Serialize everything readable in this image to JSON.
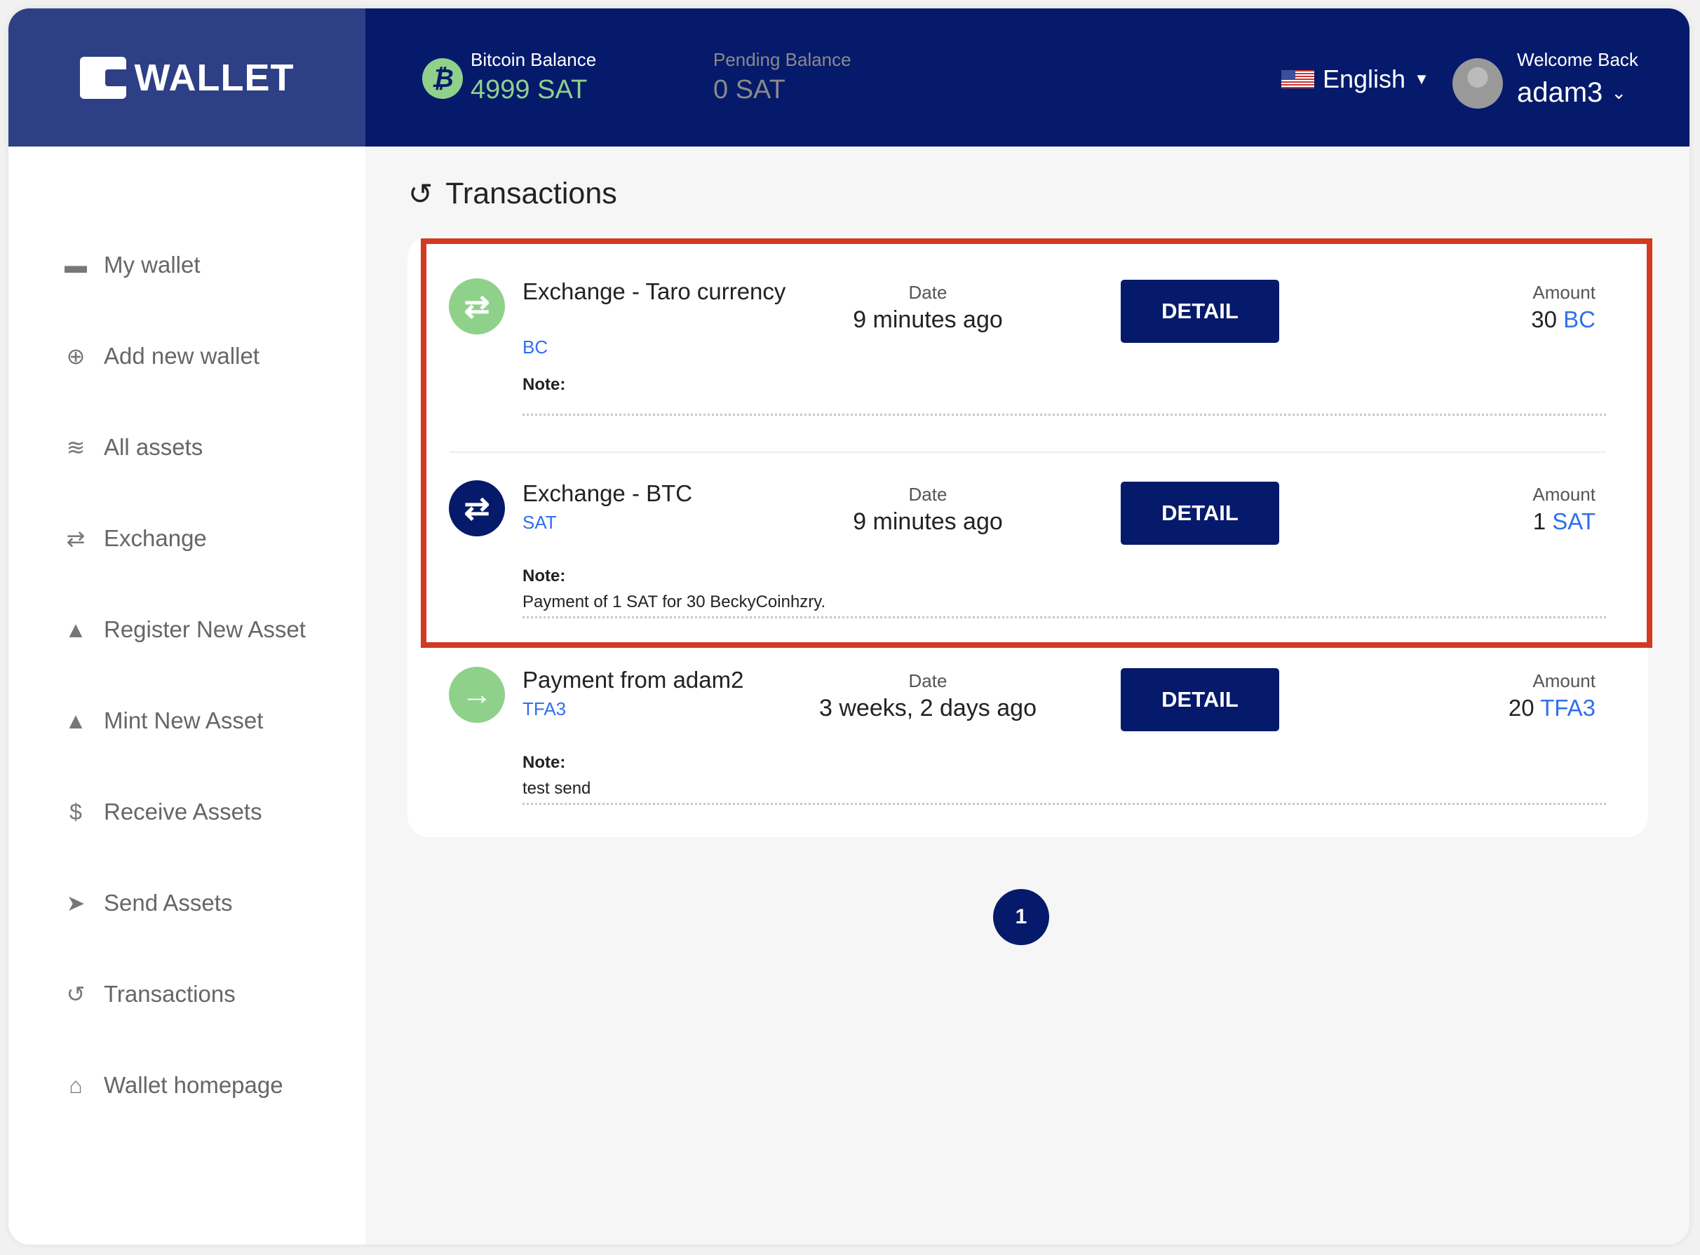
{
  "brand": {
    "logo_text": "WALLET",
    "colors": {
      "header": "#061a6b",
      "logo_bg": "#2e4085",
      "green": "#8fd18a",
      "link": "#2f6fef",
      "highlight": "#d33a22"
    }
  },
  "header": {
    "bitcoin_label": "Bitcoin Balance",
    "bitcoin_value": "4999 SAT",
    "pending_label": "Pending Balance",
    "pending_value": "0 SAT",
    "language": "English",
    "welcome": "Welcome Back",
    "username": "adam3"
  },
  "sidebar": {
    "items": [
      {
        "label": "My wallet",
        "icon": "wallet-icon"
      },
      {
        "label": "Add new wallet",
        "icon": "plus-circle-icon"
      },
      {
        "label": "All assets",
        "icon": "coins-icon"
      },
      {
        "label": "Exchange",
        "icon": "exchange-icon"
      },
      {
        "label": "Register New Asset",
        "icon": "file-upload-icon"
      },
      {
        "label": "Mint New Asset",
        "icon": "file-upload-icon"
      },
      {
        "label": "Receive Assets",
        "icon": "invoice-dollar-icon"
      },
      {
        "label": "Send Assets",
        "icon": "paper-plane-icon"
      },
      {
        "label": "Transactions",
        "icon": "history-icon"
      },
      {
        "label": "Wallet homepage",
        "icon": "home-icon"
      }
    ]
  },
  "main": {
    "title": "Transactions",
    "transactions": [
      {
        "title": "Exchange - Taro currency",
        "asset": "BC",
        "date_label": "Date",
        "date": "9 minutes ago",
        "button": "DETAIL",
        "amount_label": "Amount",
        "amount": "30",
        "amount_unit": "BC",
        "note_label": "Note:",
        "note": "",
        "icon": "exchange-icon",
        "icon_color": "#8fd18a"
      },
      {
        "title": "Exchange - BTC",
        "asset": "SAT",
        "date_label": "Date",
        "date": "9 minutes ago",
        "button": "DETAIL",
        "amount_label": "Amount",
        "amount": "1",
        "amount_unit": "SAT",
        "note_label": "Note:",
        "note": "Payment of 1 SAT for 30 BeckyCoinhzry.",
        "icon": "exchange-icon",
        "icon_color": "#061a6b"
      },
      {
        "title": "Payment from adam2",
        "asset": "TFA3",
        "date_label": "Date",
        "date": "3 weeks, 2 days ago",
        "button": "DETAIL",
        "amount_label": "Amount",
        "amount": "20",
        "amount_unit": "TFA3",
        "note_label": "Note:",
        "note": "test send",
        "icon": "arrow-right-icon",
        "icon_color": "#8fd18a"
      }
    ],
    "pagination": {
      "current": "1"
    }
  }
}
